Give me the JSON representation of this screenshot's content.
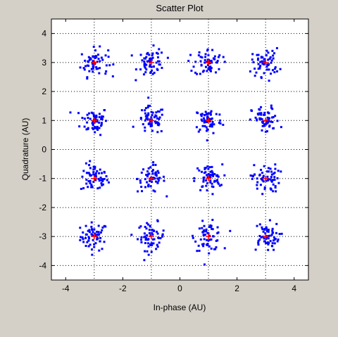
{
  "chart_data": {
    "type": "scatter",
    "title": "Scatter Plot",
    "xlabel": "In-phase (AU)",
    "ylabel": "Quadrature (AU)",
    "xlim": [
      -4.5,
      4.5
    ],
    "ylim": [
      -4.5,
      4.5
    ],
    "xticks": [
      -4,
      -2,
      0,
      2,
      4
    ],
    "yticks": [
      -4,
      -3,
      -2,
      -1,
      0,
      1,
      2,
      3,
      4
    ],
    "xtick_labels": [
      "-4",
      "-2",
      "0",
      "2",
      "4"
    ],
    "ytick_labels": [
      "-4",
      "-3",
      "-2",
      "-1",
      "0",
      "1",
      "2",
      "3",
      "4"
    ],
    "grid": true,
    "grid_x": [
      -3,
      -1,
      1,
      3
    ],
    "grid_y": [
      -4,
      -3,
      -2,
      -1,
      0,
      1,
      2,
      3,
      4
    ],
    "constellation_x": [
      -3,
      -1,
      1,
      3
    ],
    "constellation_y": [
      -3,
      -1,
      1,
      3
    ],
    "points_per_cluster": 60,
    "noise_spread": 0.24,
    "colors": {
      "points": "#0000ff",
      "centers": "#ff0000",
      "background": "#d4d0c8",
      "plot_area": "#ffffff"
    }
  }
}
